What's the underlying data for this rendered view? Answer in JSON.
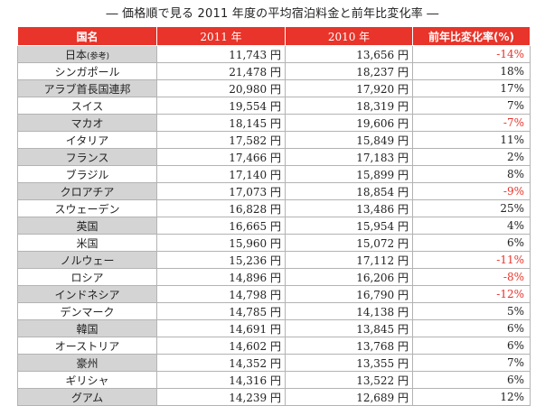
{
  "title": "― 価格順で見る 2011 年度の平均宿泊料金と前年比変化率 ―",
  "table": {
    "headers": [
      "国名",
      "2011 年",
      "2010 年",
      "前年比変化率(%)"
    ],
    "rows": [
      {
        "country": "日本",
        "note": "(参考)",
        "y2011": "11,743 円",
        "y2010": "13,656 円",
        "change": "-14%",
        "negative": true
      },
      {
        "country": "シンガポール",
        "y2011": "21,478 円",
        "y2010": "18,237 円",
        "change": "18%",
        "negative": false
      },
      {
        "country": "アラブ首長国連邦",
        "y2011": "20,980 円",
        "y2010": "17,920 円",
        "change": "17%",
        "negative": false
      },
      {
        "country": "スイス",
        "y2011": "19,554 円",
        "y2010": "18,319 円",
        "change": "7%",
        "negative": false
      },
      {
        "country": "マカオ",
        "y2011": "18,145 円",
        "y2010": "19,606 円",
        "change": "-7%",
        "negative": true
      },
      {
        "country": "イタリア",
        "y2011": "17,582 円",
        "y2010": "15,849 円",
        "change": "11%",
        "negative": false
      },
      {
        "country": "フランス",
        "y2011": "17,466 円",
        "y2010": "17,183 円",
        "change": "2%",
        "negative": false
      },
      {
        "country": "ブラジル",
        "y2011": "17,140 円",
        "y2010": "15,899 円",
        "change": "8%",
        "negative": false
      },
      {
        "country": "クロアチア",
        "y2011": "17,073 円",
        "y2010": "18,854 円",
        "change": "-9%",
        "negative": true
      },
      {
        "country": "スウェーデン",
        "y2011": "16,828 円",
        "y2010": "13,486 円",
        "change": "25%",
        "negative": false
      },
      {
        "country": "英国",
        "y2011": "16,665 円",
        "y2010": "15,954 円",
        "change": "4%",
        "negative": false
      },
      {
        "country": "米国",
        "y2011": "15,960 円",
        "y2010": "15,072 円",
        "change": "6%",
        "negative": false
      },
      {
        "country": "ノルウェー",
        "y2011": "15,236 円",
        "y2010": "17,112 円",
        "change": "-11%",
        "negative": true
      },
      {
        "country": "ロシア",
        "y2011": "14,896 円",
        "y2010": "16,206 円",
        "change": "-8%",
        "negative": true
      },
      {
        "country": "インドネシア",
        "y2011": "14,798 円",
        "y2010": "16,790 円",
        "change": "-12%",
        "negative": true
      },
      {
        "country": "デンマーク",
        "y2011": "14,785 円",
        "y2010": "14,138 円",
        "change": "5%",
        "negative": false
      },
      {
        "country": "韓国",
        "y2011": "14,691 円",
        "y2010": "13,845 円",
        "change": "6%",
        "negative": false
      },
      {
        "country": "オーストリア",
        "y2011": "14,602 円",
        "y2010": "13,768 円",
        "change": "6%",
        "negative": false
      },
      {
        "country": "豪州",
        "y2011": "14,352 円",
        "y2010": "13,355 円",
        "change": "7%",
        "negative": false
      },
      {
        "country": "ギリシャ",
        "y2011": "14,316 円",
        "y2010": "13,522 円",
        "change": "6%",
        "negative": false
      },
      {
        "country": "グアム",
        "y2011": "14,239 円",
        "y2010": "12,689 円",
        "change": "12%",
        "negative": false
      }
    ]
  },
  "colors": {
    "header_bg": "#e8342a",
    "negative_text": "#e8342a",
    "shaded_cell": "#d4d4d4"
  }
}
